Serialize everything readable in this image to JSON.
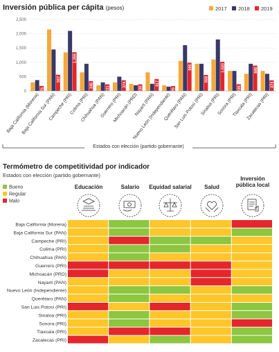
{
  "chart_data": {
    "type": "bar",
    "title": "Inversión pública per cápita",
    "subtitle": "(pesos)",
    "x_label": "Estados con elección (partido gobernante)",
    "categories": [
      "Baja California (Morena)",
      "Baja California Sur (PAN)",
      "Campeche (PRI)",
      "Colima (PRI)",
      "Chihuahua (PAN)",
      "Guerrero (PRI)",
      "Michoacán (PRD)",
      "Nayarit (PAN)",
      "Nuevo León (Independiente)",
      "Querétaro (PAN)",
      "San Luis Potosí (PRI)",
      "Sinaloa (PRI)",
      "Sonora (PRI)",
      "Tlaxcala (PRI)",
      "Zacatecas (PRI)"
    ],
    "series": [
      {
        "name": "2017",
        "color": "#f5a83b",
        "values": [
          300,
          2150,
          1350,
          650,
          200,
          300,
          250,
          650,
          200,
          1050,
          950,
          1100,
          700,
          600,
          700
        ]
      },
      {
        "name": "2018",
        "color": "#3a3868",
        "values": [
          380,
          1450,
          2100,
          950,
          300,
          500,
          200,
          250,
          150,
          1600,
          950,
          1800,
          700,
          950,
          600
        ]
      },
      {
        "name": "2019",
        "color": "#e3262c",
        "values": [
          175,
          567,
          1355,
          345,
          231,
          374,
          230,
          417,
          170,
          986,
          559,
          1020,
          235,
          886,
          374
        ],
        "value_labels": [
          "175",
          "567",
          "1,355",
          "345",
          "231",
          "374",
          "230",
          "417",
          "170",
          "986",
          "559",
          "1,020",
          "235",
          "886",
          "374"
        ]
      }
    ],
    "ylim": [
      0,
      2500
    ],
    "yticks": [
      0,
      500,
      {
        "value": 1000,
        "label": "1,000"
      },
      {
        "value": 1500,
        "label": "1,500"
      },
      {
        "value": 2000,
        "label": "2,000"
      },
      {
        "value": 2500,
        "label": "2,500"
      }
    ],
    "grid": true,
    "legend": "top-right"
  },
  "thermometer": {
    "title": "Termómetro de competitividad por indicador",
    "subtitle": "Estados con elección (partido gobernante)",
    "legend": [
      {
        "name": "Bueno",
        "color": "#8dc63f"
      },
      {
        "name": "Regular",
        "color": "#ffc629"
      },
      {
        "name": "Malo",
        "color": "#e5262a"
      }
    ],
    "columns": [
      "Educación",
      "Salario",
      "Equidad salarial",
      "Salud",
      "Inversión pública local"
    ],
    "rows": [
      {
        "state": "Baja California (Morena)",
        "ratings": [
          "Regular",
          "Bueno",
          "Regular",
          "Regular",
          "Malo"
        ]
      },
      {
        "state": "Baja California Sur (PAN)",
        "ratings": [
          "Regular",
          "Bueno",
          "Regular",
          "Regular",
          "Bueno"
        ]
      },
      {
        "state": "Campeche (PRI)",
        "ratings": [
          "Regular",
          "Malo",
          "Bueno",
          "Bueno",
          "Regular"
        ]
      },
      {
        "state": "Colima (PRI)",
        "ratings": [
          "Regular",
          "Bueno",
          "Bueno",
          "Regular",
          "Regular"
        ]
      },
      {
        "state": "Chihuahua (PAN)",
        "ratings": [
          "Regular",
          "Bueno",
          "Regular",
          "Regular",
          "Regular"
        ]
      },
      {
        "state": "Guerrero (PRI)",
        "ratings": [
          "Malo",
          "Malo",
          "Malo",
          "Malo",
          "Regular"
        ]
      },
      {
        "state": "Michoacán (PRD)",
        "ratings": [
          "Malo",
          "Regular",
          "Regular",
          "Malo",
          "Regular"
        ]
      },
      {
        "state": "Nayarit (PAN)",
        "ratings": [
          "Regular",
          "Regular",
          "Regular",
          "Malo",
          "Regular"
        ]
      },
      {
        "state": "Nuevo León (Independiente)",
        "ratings": [
          "Regular",
          "Bueno",
          "Bueno",
          "Regular",
          "Bueno"
        ]
      },
      {
        "state": "Querétaro (PAN)",
        "ratings": [
          "Regular",
          "Bueno",
          "Regular",
          "Regular",
          "Regular"
        ]
      },
      {
        "state": "San Luis Potosí (PRI)",
        "ratings": [
          "Malo",
          "Regular",
          "Malo",
          "Regular",
          "Bueno"
        ]
      },
      {
        "state": "Sinaloa (PRI)",
        "ratings": [
          "Regular",
          "Bueno",
          "Regular",
          "Regular",
          "Bueno"
        ]
      },
      {
        "state": "Sonora (PRI)",
        "ratings": [
          "Regular",
          "Bueno",
          "Regular",
          "Regular",
          "Malo"
        ]
      },
      {
        "state": "Tlaxcala (PRI)",
        "ratings": [
          "Regular",
          "Malo",
          "Malo",
          "Regular",
          "Bueno"
        ]
      },
      {
        "state": "Zacatecas (PRI)",
        "ratings": [
          "Malo",
          "Regular",
          "Bueno",
          "Regular",
          "Bueno"
        ]
      }
    ]
  }
}
